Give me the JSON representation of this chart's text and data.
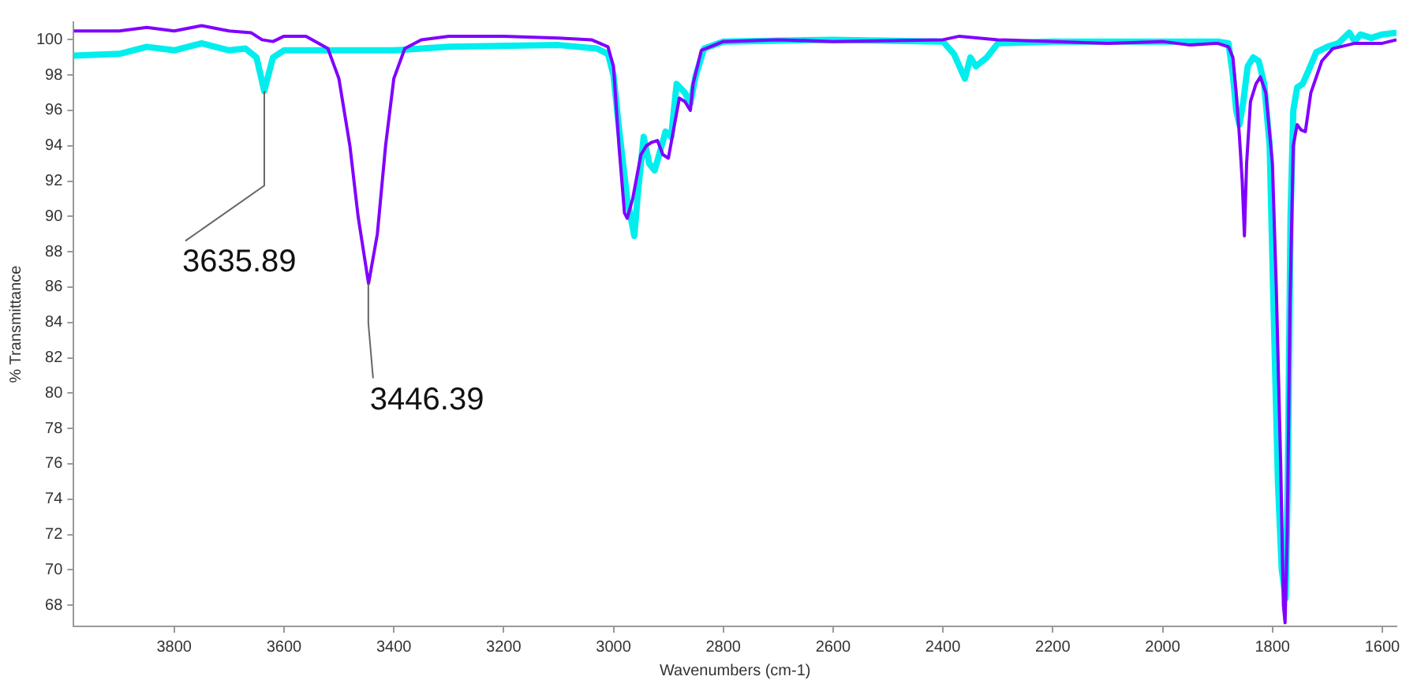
{
  "chart_data": {
    "type": "line",
    "xlabel": "Wavenumbers (cm-1)",
    "ylabel": "% Transmittance",
    "xlim": [
      3983,
      1574
    ],
    "ylim": [
      66.8,
      101
    ],
    "xticks": [
      3800,
      3600,
      3400,
      3200,
      3000,
      2800,
      2600,
      2400,
      2200,
      2000,
      1800,
      1600
    ],
    "yticks": [
      68,
      70,
      72,
      74,
      76,
      78,
      80,
      82,
      84,
      86,
      88,
      90,
      92,
      94,
      96,
      98,
      100
    ],
    "grid": false,
    "legend": false,
    "marker": "none",
    "line_style": "solid",
    "annotations": [
      {
        "text": "3635.89",
        "x": 3635.89,
        "y": 97.1
      },
      {
        "text": "3446.39",
        "x": 3446.39,
        "y": 86.2
      }
    ],
    "series": [
      {
        "color": "#8000ff",
        "x": [
          3983,
          3900,
          3850,
          3800,
          3750,
          3700,
          3660,
          3640,
          3620,
          3600,
          3560,
          3520,
          3500,
          3480,
          3465,
          3446,
          3430,
          3415,
          3400,
          3380,
          3350,
          3300,
          3200,
          3100,
          3040,
          3010,
          3000,
          2990,
          2980,
          2975,
          2965,
          2950,
          2940,
          2930,
          2920,
          2910,
          2900,
          2890,
          2880,
          2870,
          2860,
          2855,
          2840,
          2800,
          2700,
          2600,
          2400,
          2370,
          2300,
          2100,
          2000,
          1950,
          1900,
          1880,
          1872,
          1866,
          1860,
          1855,
          1851,
          1847,
          1840,
          1830,
          1822,
          1812,
          1800,
          1793,
          1785,
          1780,
          1777,
          1773,
          1768,
          1762,
          1755,
          1748,
          1740,
          1730,
          1710,
          1690,
          1650,
          1600,
          1574
        ],
        "values": [
          100.5,
          100.5,
          100.7,
          100.5,
          100.8,
          100.5,
          100.4,
          100.0,
          99.9,
          100.2,
          100.2,
          99.5,
          97.8,
          94,
          90,
          86.2,
          89,
          94,
          97.8,
          99.5,
          100.0,
          100.2,
          100.2,
          100.1,
          100.0,
          99.6,
          98.5,
          94,
          90.2,
          89.9,
          91,
          93.5,
          94,
          94.2,
          94.3,
          93.5,
          93.3,
          95,
          96.7,
          96.5,
          96.0,
          97.5,
          99.4,
          99.9,
          100.0,
          99.9,
          100.0,
          100.2,
          100.0,
          99.8,
          99.9,
          99.7,
          99.8,
          99.6,
          99,
          97,
          94.5,
          92,
          88.9,
          93,
          96.5,
          97.5,
          97.9,
          97,
          93,
          86,
          76,
          68,
          67.0,
          72,
          85,
          94,
          95.2,
          94.9,
          94.8,
          97,
          98.8,
          99.5,
          99.8,
          99.8,
          100.0
        ]
      },
      {
        "color": "#00eeee",
        "x": [
          3983,
          3900,
          3850,
          3800,
          3750,
          3700,
          3670,
          3650,
          3636,
          3620,
          3600,
          3500,
          3400,
          3300,
          3100,
          3030,
          3010,
          3000,
          2990,
          2975,
          2962,
          2955,
          2945,
          2935,
          2925,
          2915,
          2905,
          2895,
          2885,
          2870,
          2860,
          2850,
          2835,
          2800,
          2600,
          2400,
          2380,
          2360,
          2350,
          2340,
          2320,
          2300,
          2200,
          1900,
          1880,
          1872,
          1866,
          1860,
          1853,
          1845,
          1835,
          1825,
          1815,
          1805,
          1798,
          1790,
          1783,
          1776,
          1772,
          1767,
          1762,
          1755,
          1745,
          1735,
          1720,
          1700,
          1680,
          1660,
          1650,
          1640,
          1620,
          1600,
          1574
        ],
        "values": [
          99.1,
          99.2,
          99.6,
          99.4,
          99.8,
          99.4,
          99.5,
          99.0,
          97.1,
          99.0,
          99.4,
          99.4,
          99.4,
          99.6,
          99.7,
          99.5,
          99.2,
          98,
          95,
          91,
          88.9,
          91.5,
          94.5,
          93,
          92.6,
          93.7,
          94.8,
          94.5,
          97.5,
          97,
          96.4,
          98,
          99.5,
          99.9,
          100.0,
          99.9,
          99.2,
          97.8,
          99,
          98.5,
          99,
          99.8,
          99.9,
          99.9,
          99.8,
          98,
          96,
          95.2,
          96.5,
          98.5,
          99.0,
          98.8,
          97.5,
          94,
          85,
          75,
          70,
          68.4,
          75,
          90,
          96,
          97.3,
          97.5,
          98.2,
          99.3,
          99.6,
          99.8,
          100.4,
          99.9,
          100.3,
          100.1,
          100.3,
          100.4
        ]
      }
    ]
  }
}
